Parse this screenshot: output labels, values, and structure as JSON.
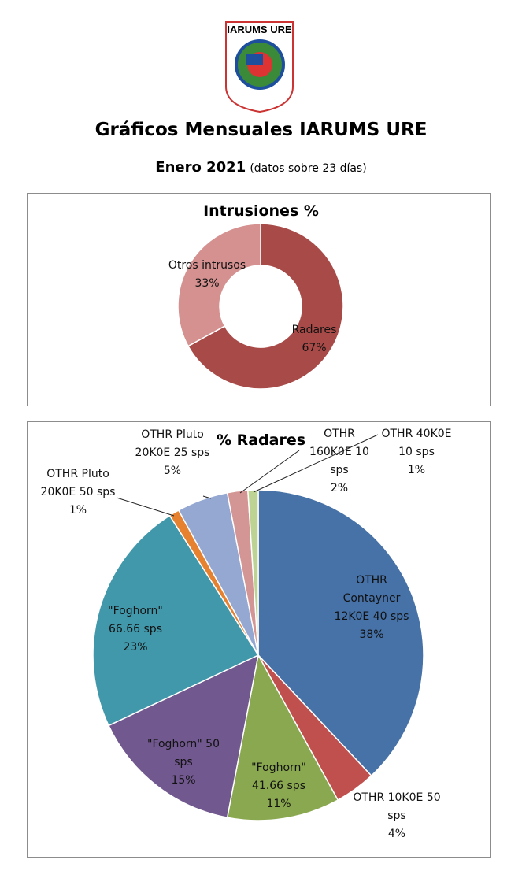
{
  "header": {
    "logo": "IARUMS URE",
    "title": "Gráficos Mensuales IARUMS URE",
    "period": "Enero 2021",
    "note": "(datos sobre 23 días)"
  },
  "chart_data": [
    {
      "type": "donut",
      "title": "Intrusiones %",
      "categories": [
        "Radares",
        "Otros intrusos"
      ],
      "values": [
        67,
        33
      ],
      "value_labels": [
        "67%",
        "33%"
      ],
      "colors": [
        "#a84a47",
        "#d4918f"
      ]
    },
    {
      "type": "pie",
      "title": "% Radares",
      "categories": [
        "OTHR Contayner 12K0E 40 sps",
        "OTHR 10K0E 50 sps",
        "\"Foghorn\" 41.66 sps",
        "\"Foghorn\" 50 sps",
        "\"Foghorn\" 66.66 sps",
        "OTHR Pluto 20K0E 50 sps",
        "OTHR Pluto 20K0E 25 sps",
        "OTHR 160K0E 10 sps",
        "OTHR  40K0E 10 sps"
      ],
      "values": [
        38,
        4,
        11,
        15,
        23,
        1,
        5,
        2,
        1
      ],
      "value_labels": [
        "38%",
        "4%",
        "11%",
        "15%",
        "23%",
        "1%",
        "5%",
        "2%",
        "1%"
      ],
      "colors": [
        "#4672a8",
        "#c0504d",
        "#8aa84f",
        "#71588f",
        "#4298ab",
        "#e6822f",
        "#94a8d2",
        "#d49694",
        "#bcd393"
      ]
    }
  ]
}
